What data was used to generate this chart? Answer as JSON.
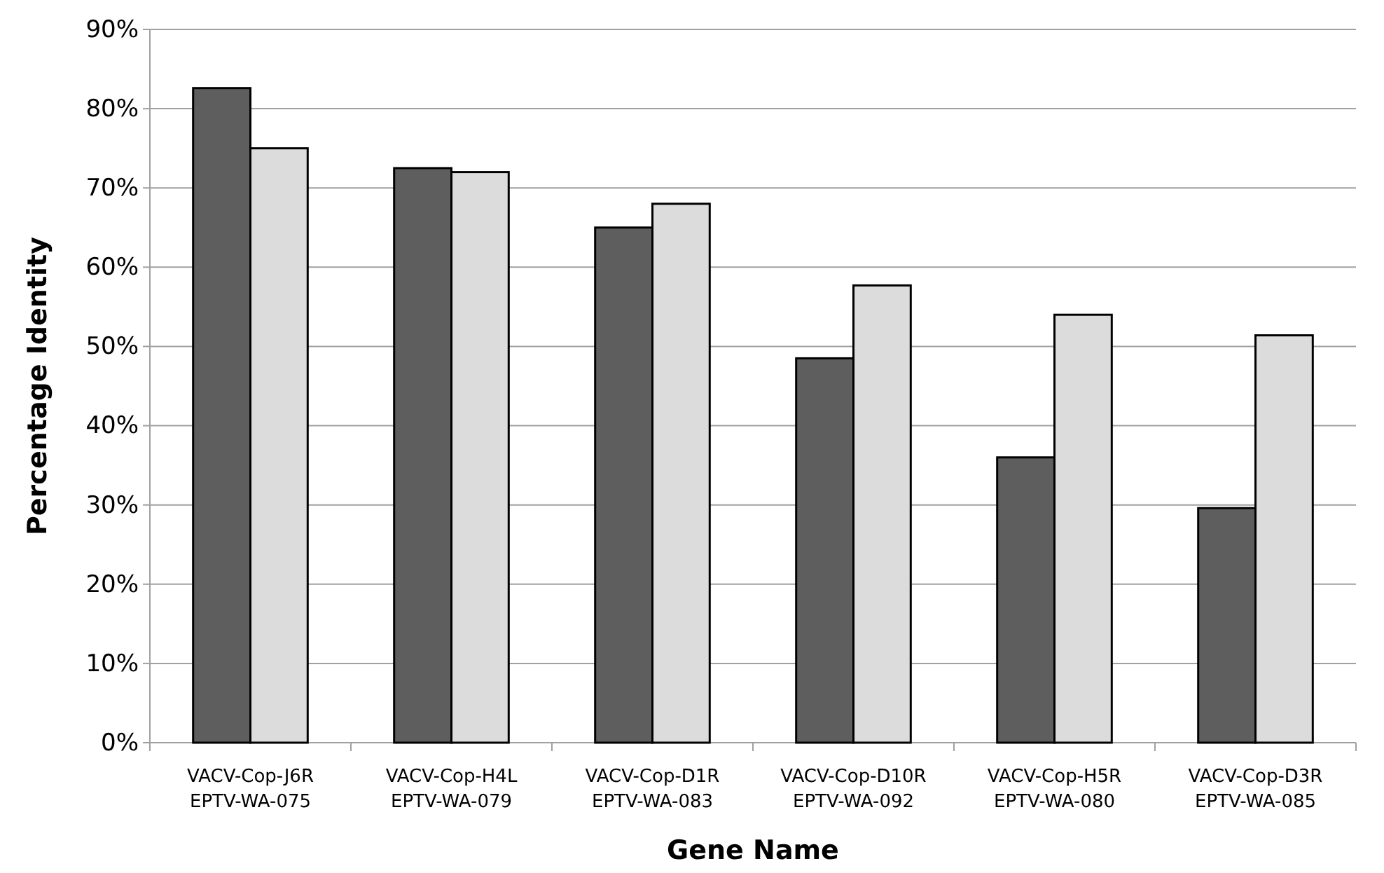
{
  "chart_data": {
    "type": "bar",
    "xlabel": "Gene Name",
    "ylabel": "Percentage Identity",
    "categories": [
      "VACV-Cop-J6R\nEPTV-WA-075",
      "VACV-Cop-H4L\nEPTV-WA-079",
      "VACV-Cop-D1R\nEPTV-WA-083",
      "VACV-Cop-D10R\nEPTV-WA-092",
      "VACV-Cop-H5R\nEPTV-WA-080",
      "VACV-Cop-D3R\nEPTV-WA-085"
    ],
    "series": [
      {
        "color": "#5e5e5e",
        "values": [
          82.6,
          72.5,
          65,
          48.5,
          36,
          29.6
        ]
      },
      {
        "color": "#dcdcdc",
        "values": [
          75,
          72,
          68,
          57.7,
          54,
          51.4
        ]
      }
    ],
    "ylim": [
      0,
      90
    ],
    "yticks": [
      {
        "value": 0,
        "label": "0%"
      },
      {
        "value": 10,
        "label": "10%"
      },
      {
        "value": 20,
        "label": "20%"
      },
      {
        "value": 30,
        "label": "30%"
      },
      {
        "value": 40,
        "label": "40%"
      },
      {
        "value": 50,
        "label": "50%"
      },
      {
        "value": 60,
        "label": "60%"
      },
      {
        "value": 70,
        "label": "70%"
      },
      {
        "value": 80,
        "label": "80%"
      },
      {
        "value": 90,
        "label": "90%"
      }
    ],
    "grid": "y"
  }
}
